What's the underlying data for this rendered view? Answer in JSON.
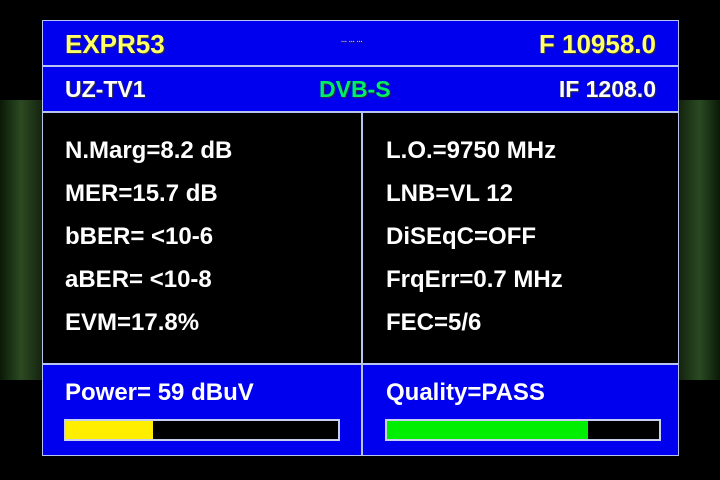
{
  "header": {
    "satellite": "EXPR53",
    "dots": "... ... ...",
    "frequency": "F 10958.0",
    "channel": "UZ-TV1",
    "standard": "DVB-S",
    "if": "IF 1208.0"
  },
  "left": [
    "N.Marg=8.2 dB",
    "MER=15.7 dB",
    "bBER= <10-6",
    "aBER= <10-8",
    "EVM=17.8%"
  ],
  "right": [
    "L.O.=9750 MHz",
    "LNB=VL 12",
    "DiSEqC=OFF",
    "FrqErr=0.7 MHz",
    "FEC=5/6"
  ],
  "power": {
    "label": "Power=  59 dBuV",
    "level_percent": 32,
    "color": "#ffee00"
  },
  "quality": {
    "label": "Quality=PASS",
    "level_percent": 74,
    "color": "#00ee00"
  }
}
